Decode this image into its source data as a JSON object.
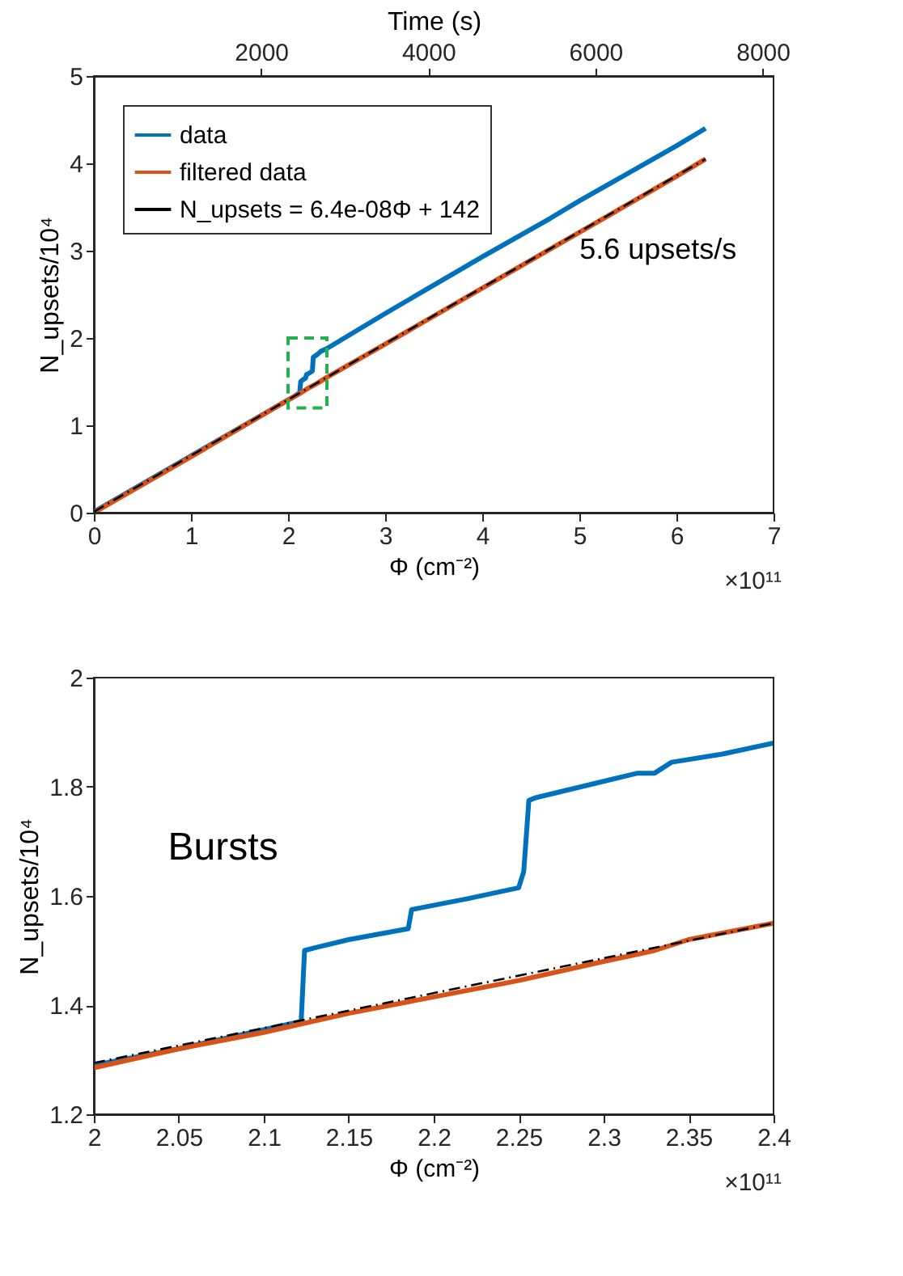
{
  "chart_data": [
    {
      "type": "line",
      "xlabel": "Φ (cm⁻²)",
      "ylabel": "N_upsets/10⁴",
      "x2label": "Time (s)",
      "xlim": [
        0,
        7
      ],
      "xticks": [
        0,
        1,
        2,
        3,
        4,
        5,
        6,
        7
      ],
      "ylim": [
        0,
        5
      ],
      "yticks": [
        0,
        1,
        2,
        3,
        4,
        5
      ],
      "x2lim": [
        0,
        8130
      ],
      "x2ticks": [
        2000,
        4000,
        6000,
        8000
      ],
      "legend": "top left",
      "grid": false,
      "series": [
        {
          "name": "data",
          "color": "#0072bd",
          "x": [
            0,
            1,
            2,
            2.05,
            2.1,
            2.12,
            2.13,
            2.15,
            2.18,
            2.19,
            2.22,
            2.25,
            2.26,
            2.3,
            2.32,
            2.34,
            2.4,
            3,
            4,
            4.7,
            5,
            6,
            6.3
          ],
          "values": [
            0.01,
            0.65,
            1.29,
            1.32,
            1.36,
            1.37,
            1.5,
            1.52,
            1.54,
            1.58,
            1.6,
            1.62,
            1.78,
            1.81,
            1.83,
            1.85,
            1.88,
            2.28,
            2.93,
            3.37,
            3.57,
            4.2,
            4.4
          ]
        },
        {
          "name": "filtered data",
          "color": "#d95319",
          "x": [
            0,
            1,
            2,
            2.1,
            2.2,
            2.3,
            2.4,
            3,
            4,
            5,
            6,
            6.3
          ],
          "values": [
            0,
            0.64,
            1.29,
            1.35,
            1.42,
            1.48,
            1.55,
            1.93,
            2.57,
            3.21,
            3.85,
            4.05
          ]
        },
        {
          "name": "N_upsets = 6.4e-08Φ + 142",
          "color": "#000000",
          "line_style": "dashed",
          "x": [
            0,
            6.3
          ],
          "values": [
            0.01,
            4.05
          ]
        }
      ],
      "annotations": [
        "5.6 upsets/s",
        "×10¹¹"
      ]
    },
    {
      "type": "line",
      "xlabel": "Φ (cm⁻²)",
      "ylabel": "N_upsets/10⁴",
      "xlim": [
        2,
        2.4
      ],
      "xticks": [
        2,
        2.05,
        2.1,
        2.15,
        2.2,
        2.25,
        2.3,
        2.35,
        2.4
      ],
      "ylim": [
        1.2,
        2
      ],
      "yticks": [
        1.2,
        1.4,
        1.6,
        1.8,
        2
      ],
      "legend": false,
      "grid": false,
      "series": [
        {
          "color": "#0072bd",
          "x": [
            2,
            2.05,
            2.1,
            2.122,
            2.124,
            2.13,
            2.15,
            2.185,
            2.187,
            2.22,
            2.25,
            2.253,
            2.256,
            2.26,
            2.3,
            2.32,
            2.33,
            2.34,
            2.37,
            2.4
          ],
          "values": [
            1.29,
            1.32,
            1.355,
            1.37,
            1.5,
            1.505,
            1.52,
            1.54,
            1.575,
            1.595,
            1.615,
            1.645,
            1.775,
            1.78,
            1.81,
            1.825,
            1.825,
            1.845,
            1.86,
            1.88
          ]
        },
        {
          "color": "#d95319",
          "x": [
            2,
            2.05,
            2.1,
            2.15,
            2.2,
            2.25,
            2.3,
            2.33,
            2.35,
            2.4
          ],
          "values": [
            1.285,
            1.32,
            1.35,
            1.385,
            1.415,
            1.445,
            1.48,
            1.5,
            1.52,
            1.55
          ]
        },
        {
          "color": "#000000",
          "line_style": "dashed",
          "x": [
            2,
            2.4
          ],
          "values": [
            1.294,
            1.55
          ]
        }
      ],
      "annotations": [
        "Bursts",
        "×10¹¹"
      ]
    }
  ]
}
